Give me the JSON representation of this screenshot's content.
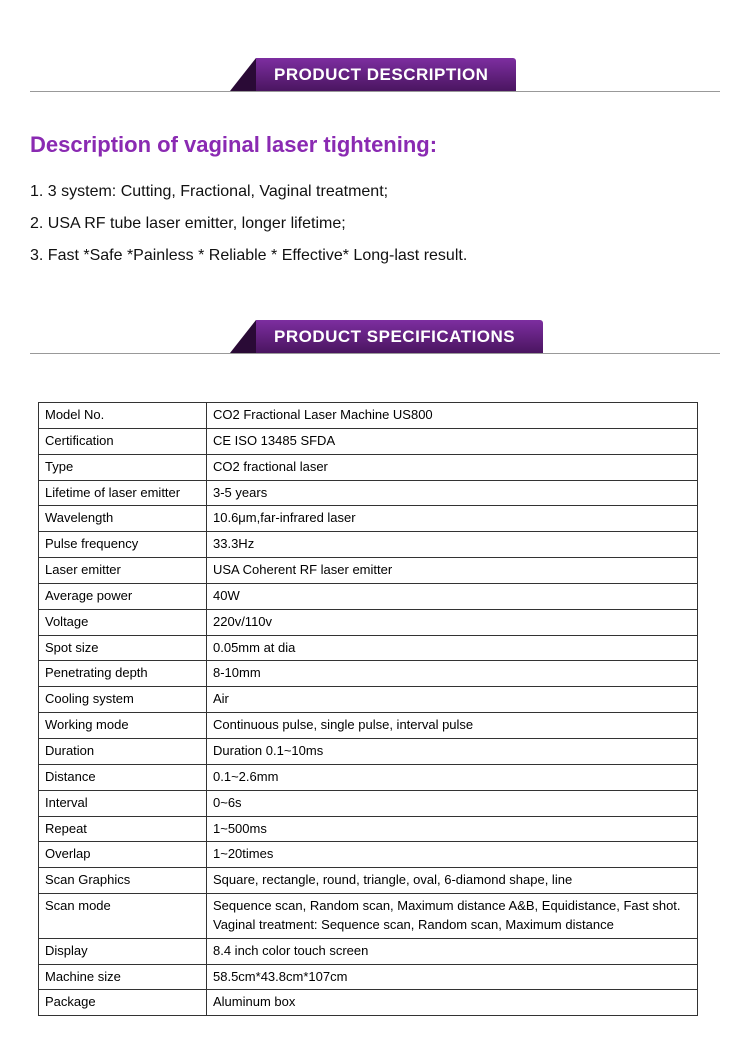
{
  "banners": {
    "description": "PRODUCT DESCRIPTION",
    "specifications": "PRODUCT SPECIFICATIONS"
  },
  "description": {
    "title": "Description of vaginal laser tightening:",
    "items": [
      "1. 3 system: Cutting, Fractional, Vaginal treatment;",
      "2. USA RF tube laser emitter, longer lifetime;",
      "3. Fast *Safe *Painless * Reliable * Effective* Long-last result."
    ]
  },
  "spec_rows": [
    {
      "label": "Model No.",
      "value": "CO2 Fractional Laser Machine US800"
    },
    {
      "label": "Certification",
      "value": "CE ISO 13485 SFDA"
    },
    {
      "label": "Type",
      "value": "CO2 fractional laser"
    },
    {
      "label": "Lifetime of laser emitter",
      "value": "3-5 years"
    },
    {
      "label": "Wavelength",
      "value": "10.6μm,far-infrared laser"
    },
    {
      "label": "Pulse frequency",
      "value": "33.3Hz"
    },
    {
      "label": "Laser emitter",
      "value": "USA Coherent RF laser emitter"
    },
    {
      "label": "Average power",
      "value": "40W"
    },
    {
      "label": "Voltage",
      "value": "220v/110v"
    },
    {
      "label": "Spot size",
      "value": "0.05mm at dia"
    },
    {
      "label": "Penetrating depth",
      "value": "8-10mm"
    },
    {
      "label": "Cooling system",
      "value": "Air"
    },
    {
      "label": "Working mode",
      "value": "Continuous pulse, single pulse, interval pulse"
    },
    {
      "label": "Duration",
      "value": "Duration 0.1~10ms"
    },
    {
      "label": "Distance",
      "value": "0.1~2.6mm"
    },
    {
      "label": "Interval",
      "value": "0~6s"
    },
    {
      "label": "Repeat",
      "value": "1~500ms"
    },
    {
      "label": "Overlap",
      "value": "1~20times"
    },
    {
      "label": "Scan Graphics",
      "value": "Square, rectangle, round, triangle, oval, 6-diamond shape, line"
    },
    {
      "label": "Scan mode",
      "value": "Sequence scan, Random scan, Maximum distance A&B, Equidistance, Fast shot. Vaginal treatment: Sequence scan, Random scan, Maximum distance"
    },
    {
      "label": "Display",
      "value": "8.4 inch color touch screen"
    },
    {
      "label": "Machine size",
      "value": "58.5cm*43.8cm*107cm"
    },
    {
      "label": "Package",
      "value": "Aluminum box"
    }
  ],
  "colors": {
    "accent": "#8a2ab2",
    "banner_grad_top": "#7d2ea0",
    "banner_grad_bottom": "#4a1560",
    "banner_arrow": "#2a0a36",
    "border": "#333333",
    "rule": "#999999"
  }
}
